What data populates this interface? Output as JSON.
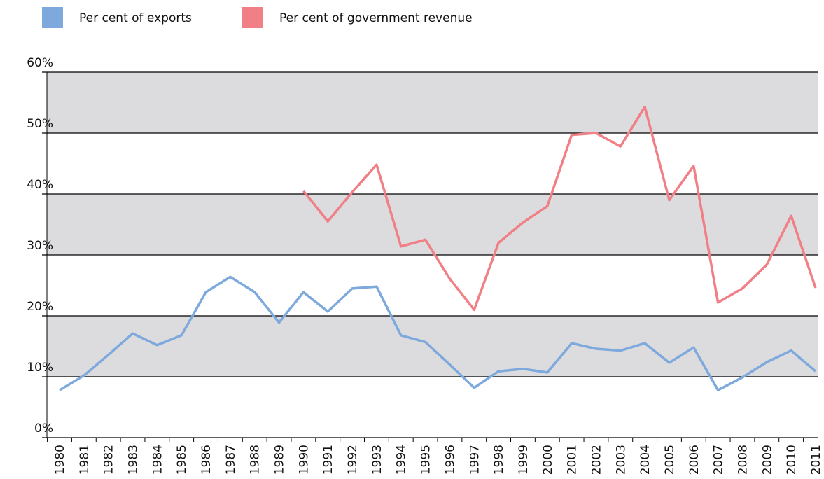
{
  "chart_data": {
    "type": "line",
    "categories": [
      "1980",
      "1981",
      "1982",
      "1983",
      "1984",
      "1985",
      "1986",
      "1987",
      "1988",
      "1989",
      "1990",
      "1991",
      "1992",
      "1993",
      "1994",
      "1995",
      "1996",
      "1997",
      "1998",
      "1999",
      "2000",
      "2001",
      "2002",
      "2003",
      "2004",
      "2005",
      "2006",
      "2007",
      "2008",
      "2009",
      "2010",
      "2011"
    ],
    "series": [
      {
        "name": "Per cent of exports",
        "color": "#7ea9dc",
        "values": [
          7.8,
          10.2,
          13.6,
          17.1,
          15.2,
          16.8,
          23.9,
          26.4,
          23.9,
          18.9,
          23.9,
          20.7,
          24.5,
          24.8,
          16.8,
          15.7,
          12.0,
          8.2,
          10.9,
          11.3,
          10.7,
          15.5,
          14.6,
          14.3,
          15.5,
          12.3,
          14.8,
          7.8,
          9.9,
          12.4,
          14.3,
          10.9
        ]
      },
      {
        "name": "Per cent of government revenue",
        "color": "#f07f86",
        "values": [
          null,
          null,
          null,
          null,
          null,
          null,
          null,
          null,
          null,
          null,
          40.5,
          35.5,
          40.3,
          44.8,
          31.4,
          32.5,
          26.1,
          21.0,
          32.0,
          35.3,
          38.0,
          49.7,
          50.0,
          47.8,
          54.3,
          39.0,
          44.6,
          22.2,
          24.5,
          28.4,
          36.4,
          24.6
        ]
      }
    ],
    "ylim": [
      0,
      60
    ],
    "yticks": [
      {
        "value": 0,
        "label": "0%"
      },
      {
        "value": 10,
        "label": "10%"
      },
      {
        "value": 20,
        "label": "20%"
      },
      {
        "value": 30,
        "label": "30%"
      },
      {
        "value": 40,
        "label": "40%"
      },
      {
        "value": 50,
        "label": "50%"
      },
      {
        "value": 60,
        "label": "60%"
      }
    ],
    "grid": true,
    "legend": "top-left"
  }
}
